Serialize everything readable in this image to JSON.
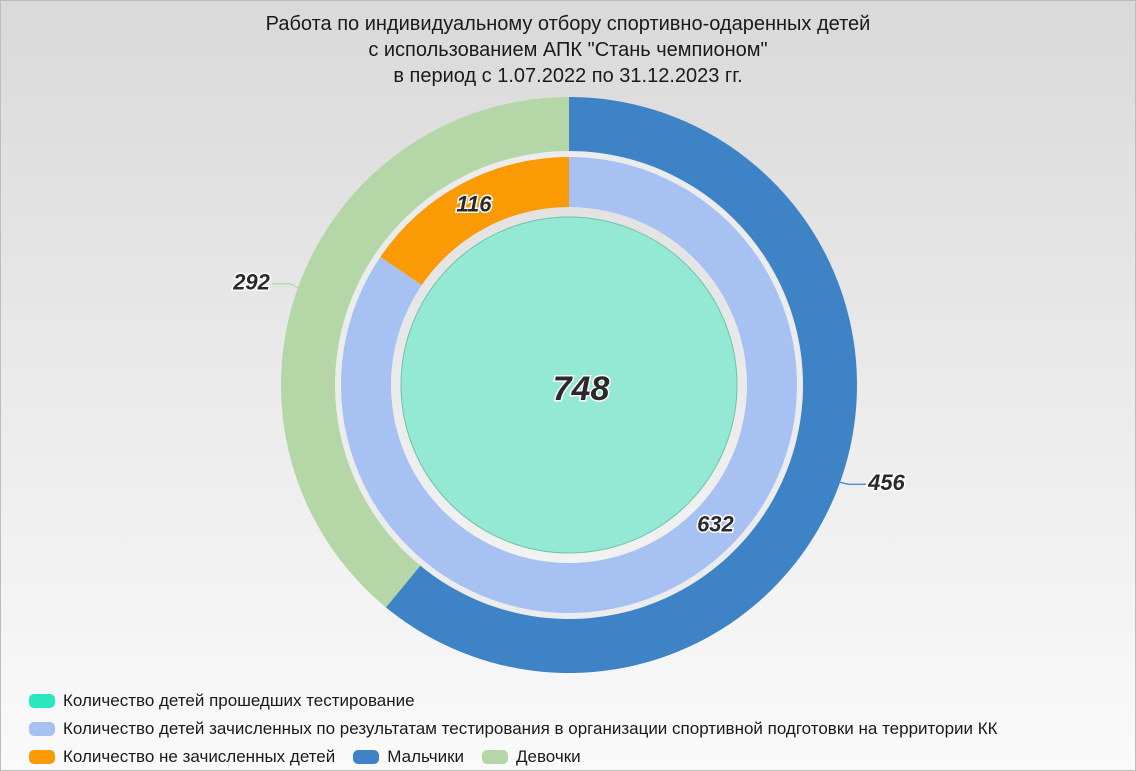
{
  "chart_data": {
    "type": "pie",
    "title_lines": [
      "Работа по индивидуальному отбору спортивно-одаренных детей",
      "с использованием АПК \"Стань чемпионом\"",
      "в период с 1.07.2022 по 31.12.2023 гг."
    ],
    "rings": [
      {
        "ring": "center",
        "slices": [
          {
            "name": "Количество детей прошедших тестирование",
            "value": 748,
            "color": "#93e9d3"
          }
        ]
      },
      {
        "ring": "middle",
        "slices": [
          {
            "name": "Количество детей зачисленных по результатам тестирования в организации спортивной подготовки на территории КК",
            "value": 632,
            "color": "#a7c1f2"
          },
          {
            "name": "Количество не зачисленных детей",
            "value": 116,
            "color": "#fa9a05"
          }
        ]
      },
      {
        "ring": "outer",
        "slices": [
          {
            "name": "Мальчики",
            "value": 456,
            "color": "#3d83c6"
          },
          {
            "name": "Девочки",
            "value": 292,
            "color": "#b5d6a7"
          }
        ]
      }
    ],
    "legend": {
      "placement": "bottom-left",
      "rows": [
        [
          {
            "label": "Количество детей прошедших тестирование",
            "color": "#29e8bf"
          }
        ],
        [
          {
            "label": "Количество детей зачисленных по результатам тестирования в организации спортивной подготовки на территории КК",
            "color": "#a7c1f2"
          }
        ],
        [
          {
            "label": "Количество не зачисленных детей",
            "color": "#fa9a05"
          },
          {
            "label": "Мальчики",
            "color": "#3d83c6"
          },
          {
            "label": "Девочки",
            "color": "#b5d6a7"
          }
        ]
      ]
    }
  }
}
